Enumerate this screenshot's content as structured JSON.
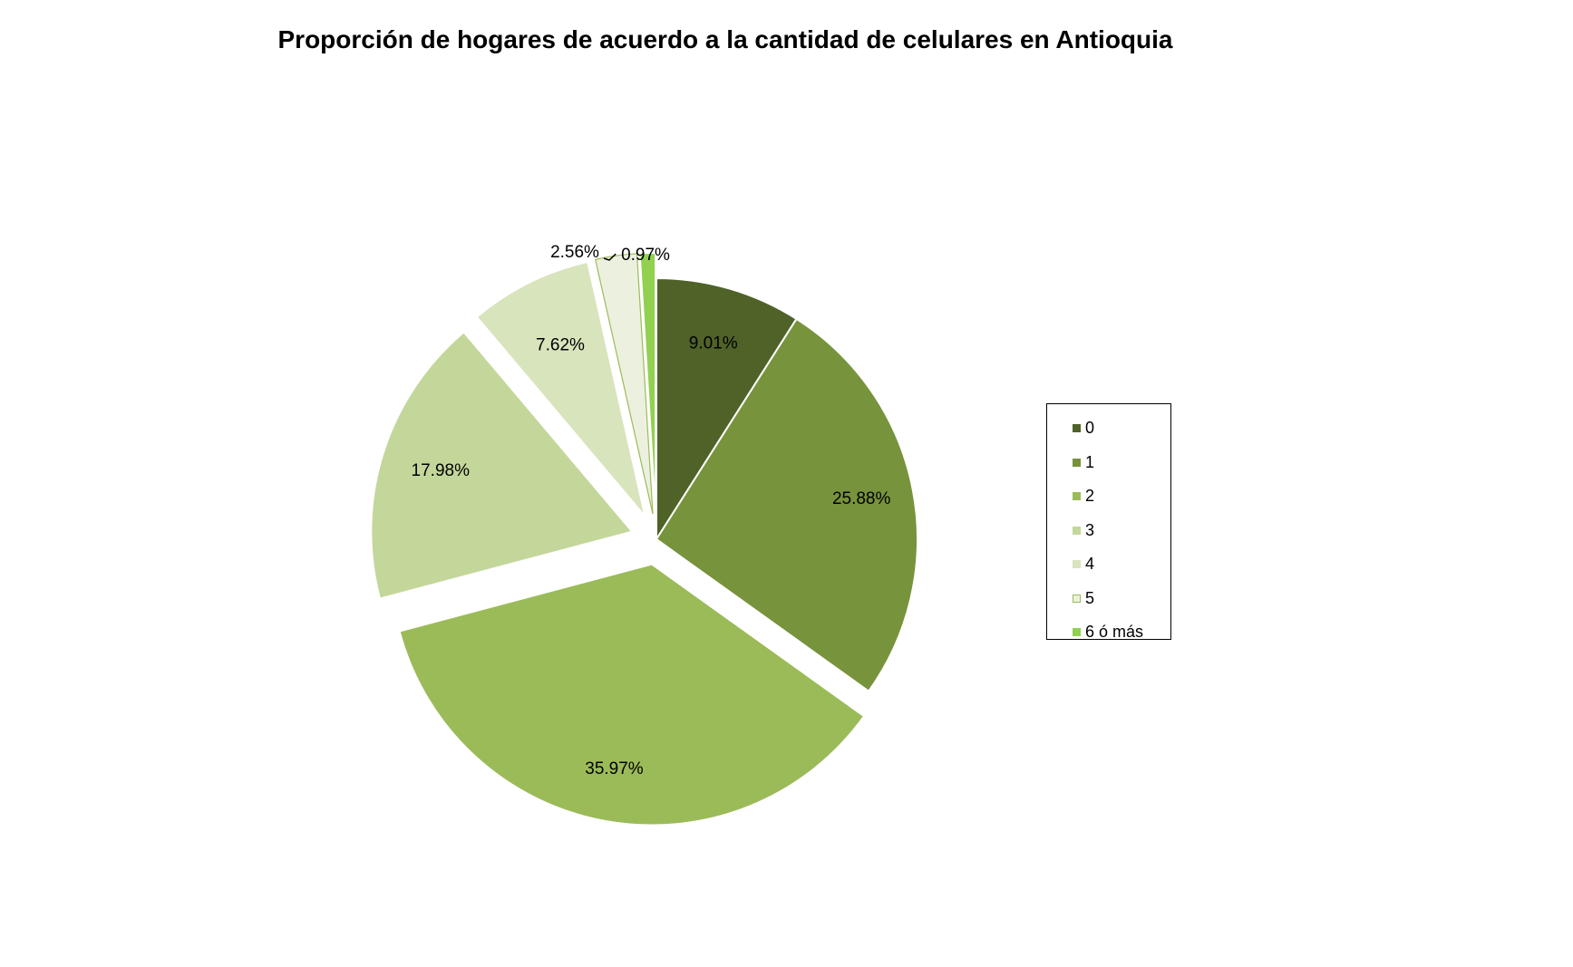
{
  "chart_data": {
    "type": "pie",
    "title": "Proporción de hogares de acuerdo a la cantidad de celulares en Antioquia",
    "categories": [
      "0",
      "1",
      "2",
      "3",
      "4",
      "5",
      "6 ó más"
    ],
    "values": [
      9.01,
      25.88,
      35.97,
      17.98,
      7.62,
      2.56,
      0.97
    ],
    "data_labels": [
      "9.01%",
      "25.88%",
      "35.97%",
      "17.98%",
      "7.62%",
      "2.56%",
      "0.97%"
    ],
    "colors": [
      "#4f6228",
      "#77933c",
      "#9bbb59",
      "#c4d79b",
      "#d8e4bc",
      "#ebf1de",
      "#92d050"
    ],
    "exploded": [
      false,
      false,
      true,
      true,
      true,
      true,
      true
    ],
    "start_angle": "12 o'clock",
    "direction": "clockwise",
    "legend_position": "right"
  }
}
